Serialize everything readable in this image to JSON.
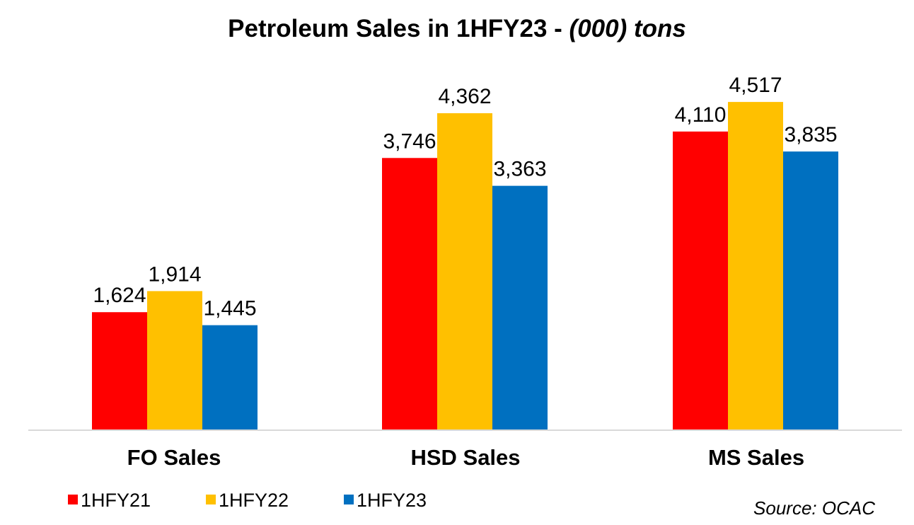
{
  "chart_data": {
    "type": "bar",
    "title": "Petroleum Sales in 1HFY23 - ",
    "title_unit": "(000) tons",
    "categories": [
      "FO Sales",
      "HSD Sales",
      "MS Sales"
    ],
    "series": [
      {
        "name": "1HFY21",
        "color": "#FF0000",
        "values": [
          1624,
          3746,
          4110
        ],
        "labels": [
          "1,624",
          "3,746",
          "4,110"
        ]
      },
      {
        "name": "1HFY22",
        "color": "#FFC000",
        "values": [
          1914,
          4362,
          4517
        ],
        "labels": [
          "1,914",
          "4,362",
          "4,517"
        ]
      },
      {
        "name": "1HFY23",
        "color": "#0070C0",
        "values": [
          1445,
          3363,
          3835
        ],
        "labels": [
          "1,445",
          "3,363",
          "3,835"
        ]
      }
    ],
    "ylim": [
      0,
      5000
    ],
    "grid": false,
    "legend_position": "bottom-left",
    "source": "Source: OCAC"
  }
}
